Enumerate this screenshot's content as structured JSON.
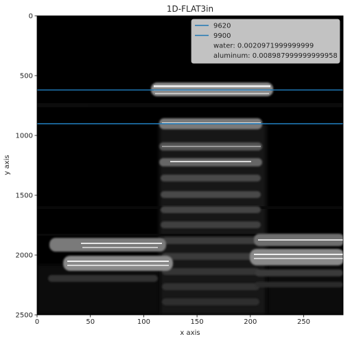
{
  "chart_data": {
    "type": "heatmap",
    "title": "1D-FLAT3in",
    "xlabel": "x axis",
    "ylabel": "y axis",
    "xlim": [
      0,
      287
    ],
    "ylim": [
      2500,
      0
    ],
    "y_inverted": true,
    "x_ticks": [
      0,
      50,
      100,
      150,
      200,
      250
    ],
    "y_ticks": [
      0,
      500,
      1000,
      1500,
      2000,
      2500
    ],
    "colormap": "gray",
    "background_color": "#000000",
    "line_color": "#1f77b4",
    "hlines": [
      {
        "name": "9620",
        "y": 620
      },
      {
        "name": "9900",
        "y": 902
      }
    ],
    "legend": {
      "location": "upper right",
      "entries": [
        {
          "label": "9620",
          "marker": "line"
        },
        {
          "label": "9900",
          "marker": "line"
        },
        {
          "label": "water: 0.0020971999999999",
          "marker": "none"
        },
        {
          "label": "aluminum: 0.008987999999999958",
          "marker": "none"
        }
      ]
    },
    "grid": false
  }
}
